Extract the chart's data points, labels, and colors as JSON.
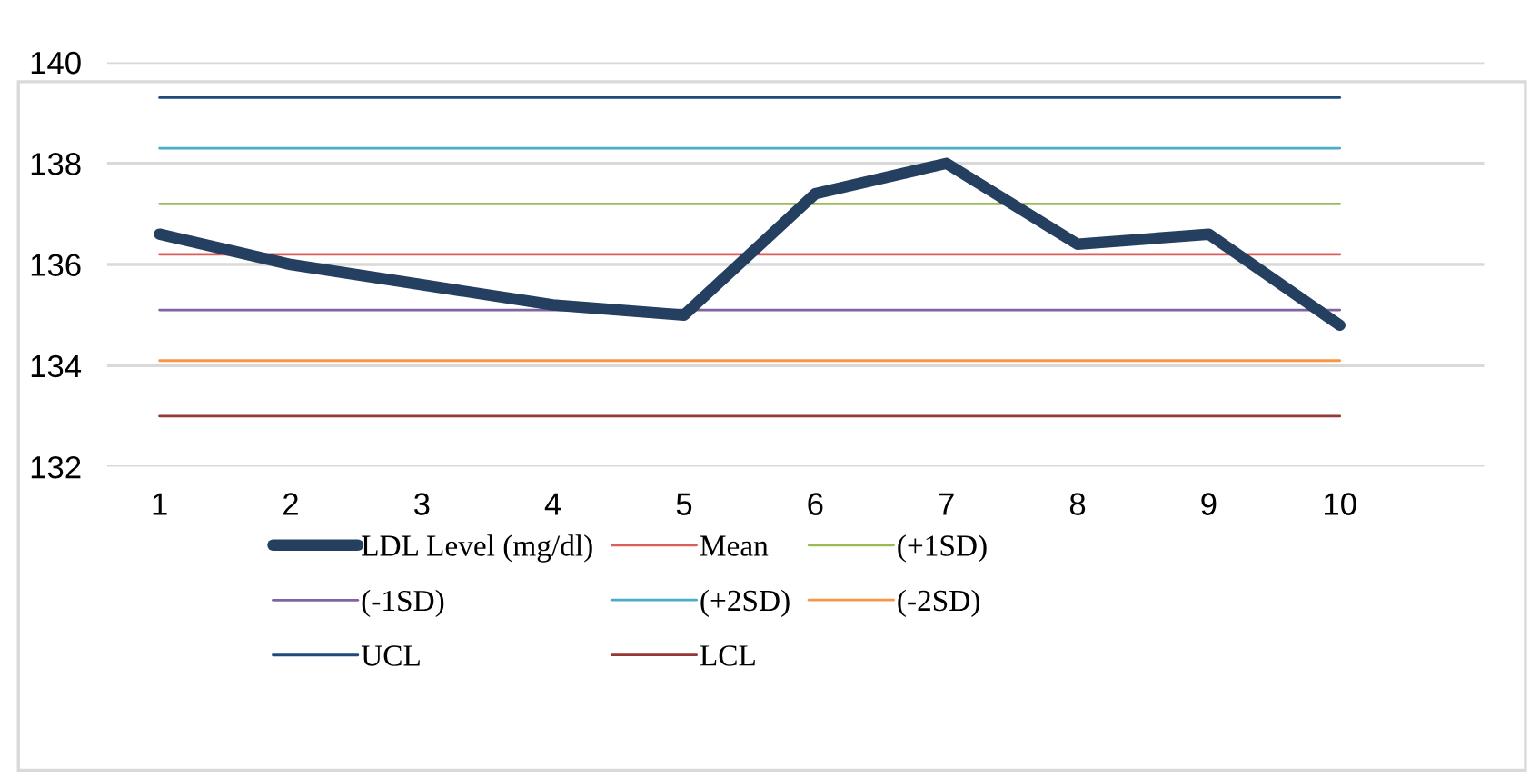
{
  "chart_data": {
    "type": "line",
    "categories": [
      "1",
      "2",
      "3",
      "4",
      "5",
      "6",
      "7",
      "8",
      "9",
      "10"
    ],
    "series": [
      {
        "name": "LDL Level (mg/dl)",
        "color": "#243f60",
        "values": [
          136.6,
          136.0,
          135.6,
          135.2,
          135.0,
          137.4,
          138.0,
          136.4,
          136.6,
          134.8
        ]
      },
      {
        "name": "Mean",
        "color": "#d9605b",
        "values": [
          136.2,
          136.2,
          136.2,
          136.2,
          136.2,
          136.2,
          136.2,
          136.2,
          136.2,
          136.2
        ]
      },
      {
        "name": "(+1SD)",
        "color": "#9bbb59",
        "values": [
          137.2,
          137.2,
          137.2,
          137.2,
          137.2,
          137.2,
          137.2,
          137.2,
          137.2,
          137.2
        ]
      },
      {
        "name": "(-1SD)",
        "color": "#8064a2",
        "values": [
          135.1,
          135.1,
          135.1,
          135.1,
          135.1,
          135.1,
          135.1,
          135.1,
          135.1,
          135.1
        ]
      },
      {
        "name": "(+2SD)",
        "color": "#4bacc6",
        "values": [
          138.3,
          138.3,
          138.3,
          138.3,
          138.3,
          138.3,
          138.3,
          138.3,
          138.3,
          138.3
        ]
      },
      {
        "name": "(-2SD)",
        "color": "#f79646",
        "values": [
          134.1,
          134.1,
          134.1,
          134.1,
          134.1,
          134.1,
          134.1,
          134.1,
          134.1,
          134.1
        ]
      },
      {
        "name": "UCL",
        "color": "#1f497d",
        "values": [
          139.3,
          139.3,
          139.3,
          139.3,
          139.3,
          139.3,
          139.3,
          139.3,
          139.3,
          139.3
        ]
      },
      {
        "name": "LCL",
        "color": "#953735",
        "values": [
          133.0,
          133.0,
          133.0,
          133.0,
          133.0,
          133.0,
          133.0,
          133.0,
          133.0,
          133.0
        ]
      }
    ],
    "ylim": [
      132,
      140
    ],
    "yticks": [
      132,
      134,
      136,
      138,
      140
    ],
    "grid": "y",
    "legend": "bottom",
    "marker": "none",
    "line_style": "solid"
  }
}
